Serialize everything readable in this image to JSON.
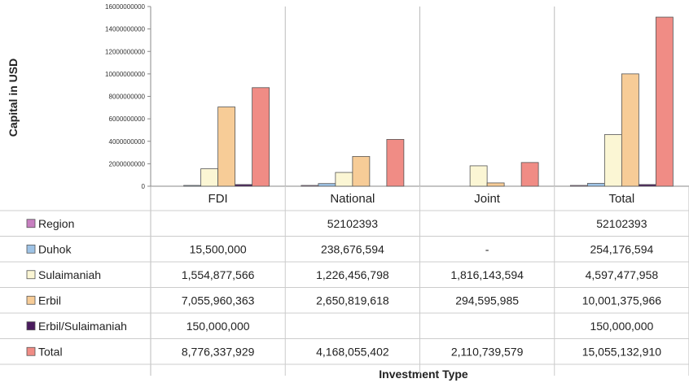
{
  "chart_data": {
    "type": "bar",
    "xlabel": "Investment Type",
    "ylabel": "Capital in USD",
    "ylim": [
      0,
      16000000000
    ],
    "yticks": [
      "0",
      "2000000000",
      "4000000000",
      "6000000000",
      "8000000000",
      "10000000000",
      "12000000000",
      "14000000000",
      "16000000000"
    ],
    "categories": [
      "FDI",
      "National",
      "Joint",
      "Total"
    ],
    "legend_position": "bottom (data table)",
    "grid": false,
    "series": [
      {
        "name": "Region",
        "color": "#c77fc0",
        "values": [
          0,
          52102393,
          0,
          52102393
        ],
        "labels": [
          "",
          "52102393",
          "",
          "52102393"
        ]
      },
      {
        "name": "Duhok",
        "color": "#9ec3e6",
        "values": [
          15500000,
          238676594,
          0,
          254176594
        ],
        "labels": [
          "15,500,000",
          "238,676,594",
          "-",
          "254,176,594"
        ]
      },
      {
        "name": "Sulaimaniah",
        "color": "#fbf6d4",
        "values": [
          1554877566,
          1226456798,
          1816143594,
          4597477958
        ],
        "labels": [
          "1,554,877,566",
          "1,226,456,798",
          "1,816,143,594",
          "4,597,477,958"
        ]
      },
      {
        "name": "Erbil",
        "color": "#f7cc97",
        "values": [
          7055960363,
          2650819618,
          294595985,
          10001375966
        ],
        "labels": [
          "7,055,960,363",
          "2,650,819,618",
          "294,595,985",
          "10,001,375,966"
        ]
      },
      {
        "name": "Erbil/Sulaimaniah",
        "color": "#4a1b5e",
        "values": [
          150000000,
          0,
          0,
          150000000
        ],
        "labels": [
          "150,000,000",
          "",
          "",
          "150,000,000"
        ]
      },
      {
        "name": "Total",
        "color": "#f08c85",
        "values": [
          8776337929,
          4168055402,
          2110739579,
          15055132910
        ],
        "labels": [
          "8,776,337,929",
          "4,168,055,402",
          "2,110,739,579",
          "15,055,132,910"
        ]
      }
    ]
  }
}
